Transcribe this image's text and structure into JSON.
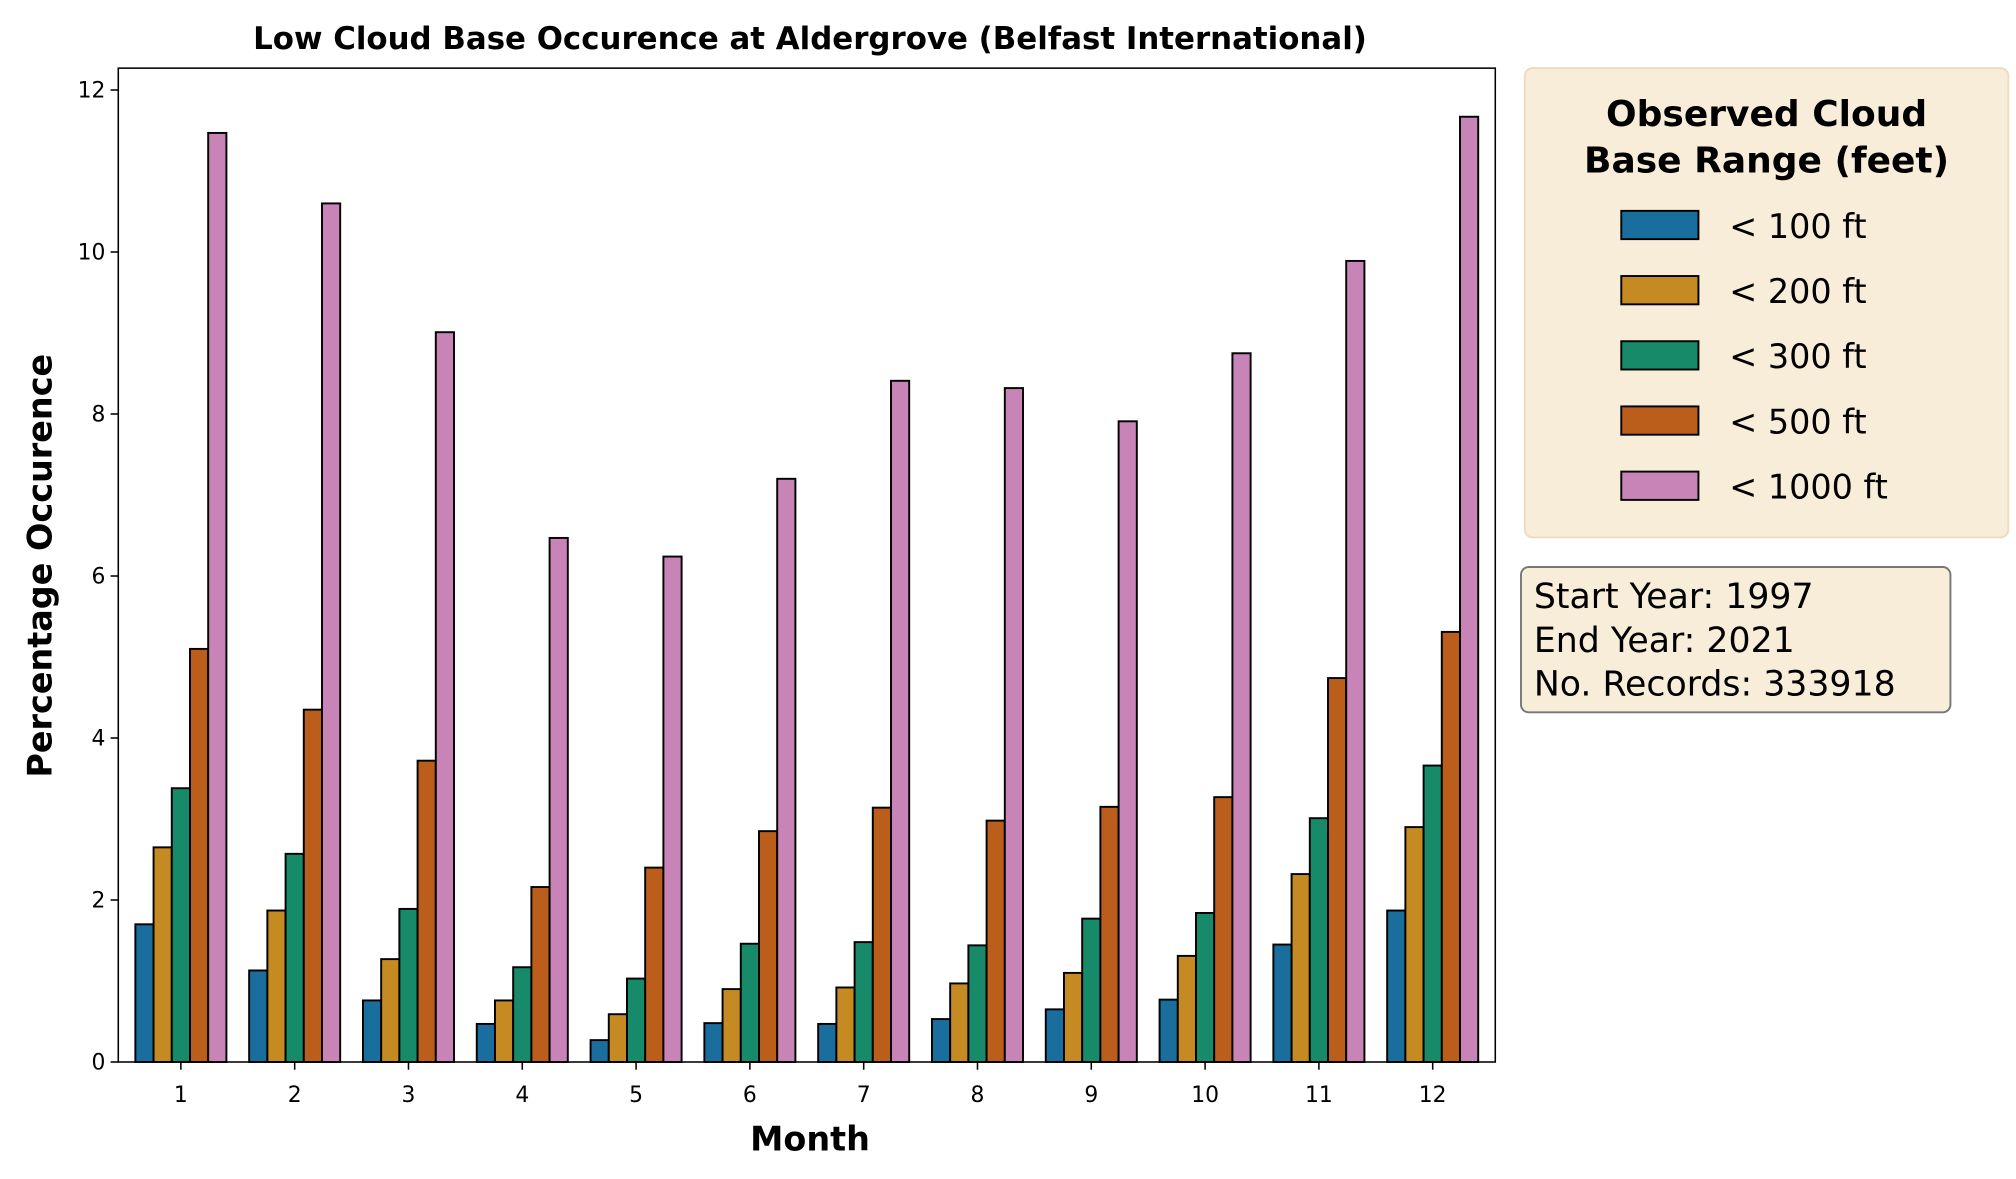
{
  "chart_data": {
    "type": "bar",
    "title": "Low Cloud Base Occurence at Aldergrove (Belfast International)",
    "xlabel": "Month",
    "ylabel": "Percentage Occurence",
    "categories": [
      "1",
      "2",
      "3",
      "4",
      "5",
      "6",
      "7",
      "8",
      "9",
      "10",
      "11",
      "12"
    ],
    "ylim": [
      0,
      12.27
    ],
    "yticks": [
      0,
      2,
      4,
      6,
      8,
      10,
      12
    ],
    "grid": false,
    "legend": {
      "title_lines": [
        "Observed Cloud",
        "Base Range (feet)"
      ],
      "placement": "outside-right-top"
    },
    "series": [
      {
        "name": "< 100 ft",
        "color": "#1a6e9e",
        "values": [
          1.7,
          1.13,
          0.76,
          0.47,
          0.27,
          0.48,
          0.47,
          0.53,
          0.65,
          0.77,
          1.45,
          1.87
        ]
      },
      {
        "name": "< 200 ft",
        "color": "#c68a23",
        "values": [
          2.65,
          1.87,
          1.27,
          0.76,
          0.59,
          0.9,
          0.92,
          0.97,
          1.1,
          1.31,
          2.32,
          2.9
        ]
      },
      {
        "name": "< 300 ft",
        "color": "#178a6a",
        "values": [
          3.38,
          2.57,
          1.89,
          1.17,
          1.03,
          1.46,
          1.48,
          1.44,
          1.77,
          1.84,
          3.01,
          3.66
        ]
      },
      {
        "name": "< 500 ft",
        "color": "#bb5e1c",
        "values": [
          5.1,
          4.35,
          3.72,
          2.16,
          2.4,
          2.85,
          3.14,
          2.98,
          3.15,
          3.27,
          4.74,
          5.31
        ]
      },
      {
        "name": "< 1000 ft",
        "color": "#c884b6",
        "values": [
          11.47,
          10.6,
          9.01,
          6.47,
          6.24,
          7.2,
          8.41,
          8.32,
          7.91,
          8.75,
          9.89,
          11.67
        ]
      }
    ],
    "annotation": {
      "lines": [
        "Start Year: 1997",
        "End Year: 2021",
        "No. Records: 333918"
      ]
    }
  },
  "colors": {
    "legend_bg": "#f8edd8",
    "legend_border": "#ecdcc0",
    "info_border": "#777777"
  }
}
